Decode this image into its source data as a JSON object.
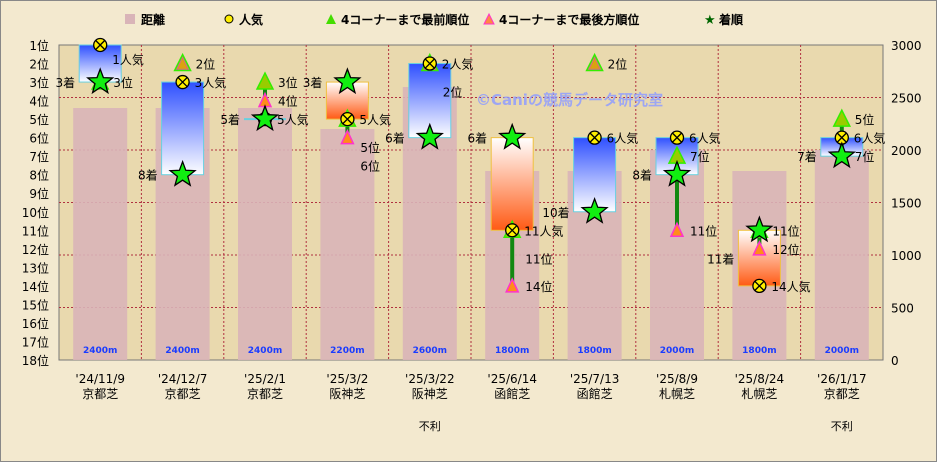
{
  "chart_data": {
    "type": "bar",
    "legend": {
      "placement": "top",
      "items": [
        {
          "key": "distance",
          "label": "距離",
          "color": "#d9b4b8"
        },
        {
          "key": "popularity",
          "label": "人気",
          "color": "#ffee00"
        },
        {
          "key": "front",
          "label": "4コーナーまで最前順位",
          "color": "#44dd00"
        },
        {
          "key": "worst",
          "label": "4コーナーまで最後方順位",
          "color": "#ff8844"
        },
        {
          "key": "finish",
          "label": "着順",
          "color": "#00cc00"
        }
      ]
    },
    "left_axis": {
      "ticks": [
        "1位",
        "2位",
        "3位",
        "4位",
        "5位",
        "6位",
        "7位",
        "8位",
        "9位",
        "10位",
        "11位",
        "12位",
        "13位",
        "14位",
        "15位",
        "16位",
        "17位",
        "18位"
      ],
      "range": [
        1,
        18
      ]
    },
    "right_axis": {
      "ticks": [
        0,
        500,
        1000,
        1500,
        2000,
        2500,
        3000
      ],
      "range": [
        0,
        3000
      ]
    },
    "grid": true,
    "watermark": "©Caniの競馬データ研究室",
    "colors": {
      "box_worse": "#3355ff",
      "box_better": "#ff5511",
      "line": "#118811"
    },
    "races": [
      {
        "date": "'24/11/9",
        "course": "京都芝",
        "distance": 2400,
        "distance_label": "2400m",
        "popularity": 1,
        "finish": 3,
        "front": 3,
        "worst": 3,
        "pop_label": "1人気",
        "finish_label": "3着",
        "front_label": "3位",
        "worst_label": "3位",
        "note": ""
      },
      {
        "date": "'24/12/7",
        "course": "京都芝",
        "distance": 2400,
        "distance_label": "2400m",
        "popularity": 3,
        "finish": 8,
        "front": 2,
        "worst": 2,
        "pop_label": "3人気",
        "finish_label": "8着",
        "front_label": "2位",
        "worst_label": "2位",
        "note": ""
      },
      {
        "date": "'25/2/1",
        "course": "京都芝",
        "distance": 2400,
        "distance_label": "2400m",
        "popularity": 5,
        "finish": 5,
        "front": 3,
        "worst": 4,
        "pop_label": "5人気",
        "finish_label": "5着",
        "front_label": "3位",
        "worst_label": "4位",
        "note": ""
      },
      {
        "date": "'25/3/2",
        "course": "阪神芝",
        "distance": 2200,
        "distance_label": "2200m",
        "popularity": 5,
        "finish": 3,
        "front": 5,
        "worst": 6,
        "pop_label": "5人気",
        "finish_label": "3着",
        "front_label": "5位",
        "worst_label": "6位",
        "note": ""
      },
      {
        "date": "'25/3/22",
        "course": "阪神芝",
        "distance": 2600,
        "distance_label": "2600m",
        "popularity": 2,
        "finish": 6,
        "front": 2,
        "worst": 2,
        "pop_label": "2人気",
        "finish_label": "6着",
        "front_label": "2位",
        "worst_label": "2位",
        "note": "不利"
      },
      {
        "date": "'25/6/14",
        "course": "函館芝",
        "distance": 1800,
        "distance_label": "1800m",
        "popularity": 11,
        "finish": 6,
        "front": 11,
        "worst": 14,
        "pop_label": "11人気",
        "finish_label": "6着",
        "front_label": "11位",
        "worst_label": "14位",
        "note": ""
      },
      {
        "date": "'25/7/13",
        "course": "函館芝",
        "distance": 1800,
        "distance_label": "1800m",
        "popularity": 6,
        "finish": 10,
        "front": 2,
        "worst": 2,
        "pop_label": "6人気",
        "finish_label": "10着",
        "front_label": "2位",
        "worst_label": "2位",
        "note": ""
      },
      {
        "date": "'25/8/9",
        "course": "札幌芝",
        "distance": 2000,
        "distance_label": "2000m",
        "popularity": 6,
        "finish": 8,
        "front": 7,
        "worst": 11,
        "pop_label": "6人気",
        "finish_label": "8着",
        "front_label": "7位",
        "worst_label": "11位",
        "note": ""
      },
      {
        "date": "'25/8/24",
        "course": "札幌芝",
        "distance": 1800,
        "distance_label": "1800m",
        "popularity": 14,
        "finish": 11,
        "front": 11,
        "worst": 12,
        "pop_label": "14人気",
        "finish_label": "11着",
        "front_label": "11位",
        "worst_label": "12位",
        "note": ""
      },
      {
        "date": "'26/1/17",
        "course": "京都芝",
        "distance": 2000,
        "distance_label": "2000m",
        "popularity": 6,
        "finish": 7,
        "front": 5,
        "worst": 7,
        "pop_label": "6人気",
        "finish_label": "7着",
        "front_label": "5位",
        "worst_label": "7位",
        "note": "不利"
      }
    ]
  }
}
